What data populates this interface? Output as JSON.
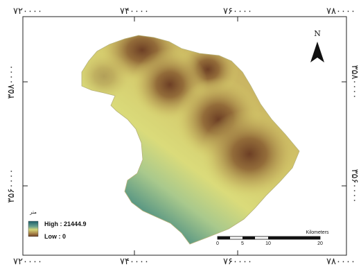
{
  "grid": {
    "x_labels_top": [
      "۷۲۰۰۰۰",
      "۷۴۰۰۰۰",
      "۷۶۰۰۰۰",
      "۷۸۰۰۰۰"
    ],
    "x_labels_bottom": [
      "۷۲۰۰۰۰",
      "۷۴۰۰۰۰",
      "۷۶۰۰۰۰",
      "۷۸۰۰۰۰"
    ],
    "y_labels_left": [
      "۳۵۸۰۰۰۰",
      "۳۵۶۰۰۰۰"
    ],
    "y_labels_right": [
      "۳۵۸۰۰۰۰",
      "۳۵۶۰۰۰۰"
    ]
  },
  "north_arrow": {
    "label": "N"
  },
  "legend": {
    "title": "متر",
    "high_label": "High : 21444.9",
    "low_label": "Low : 0",
    "ramp_colors": [
      "#1d5f6b",
      "#4f8f80",
      "#c5d582",
      "#d9d46c",
      "#b59a4f",
      "#7a4a2a"
    ]
  },
  "scale_bar": {
    "unit": "Kilometers",
    "ticks": [
      "0",
      "5",
      "10",
      "20"
    ]
  },
  "colors": {
    "frame": "#222222",
    "ramp_high": "#1d5f6b",
    "ramp_low": "#6d3f25",
    "mid": "#d7d774"
  }
}
